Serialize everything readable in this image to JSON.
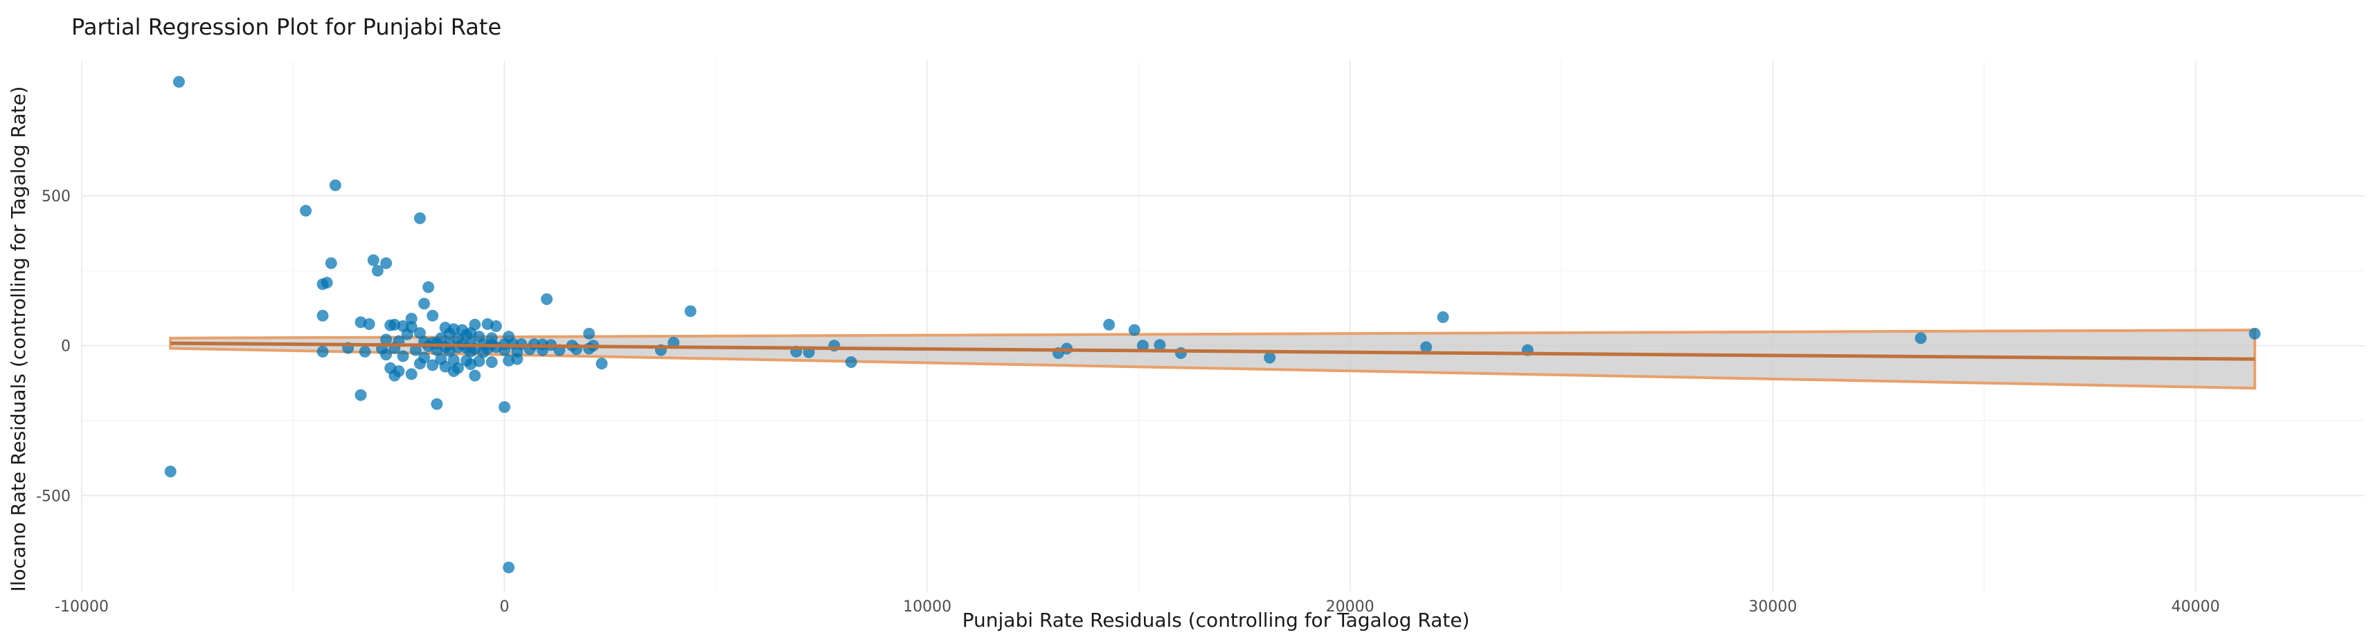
{
  "chart_data": {
    "type": "scatter",
    "title": "Partial Regression Plot for Punjabi Rate",
    "xlabel": "Punjabi Rate Residuals (controlling for Tagalog Rate)",
    "ylabel": "Ilocano Rate Residuals (controlling for Tagalog Rate)",
    "xlim": [
      -10000,
      44000
    ],
    "ylim": [
      -820,
      950
    ],
    "x_ticks": [
      -10000,
      0,
      10000,
      20000,
      30000,
      40000
    ],
    "x_tick_labels": [
      "-10000",
      "0",
      "10000",
      "20000",
      "30000",
      "40000"
    ],
    "y_ticks": [
      -500,
      0,
      500
    ],
    "y_tick_labels": [
      "-500",
      "0",
      "500"
    ],
    "grid": true,
    "point_color": "#0072B2",
    "line_color": "#C0713A",
    "band_edge_color": "#E8A06A",
    "band_fill_color": "#C8C8C8",
    "fit": {
      "x_range": [
        -7900,
        41400
      ],
      "y_start": 8,
      "y_end": -45,
      "ci_lower": [
        -9,
        -142
      ],
      "ci_upper": [
        25,
        52
      ]
    },
    "points": [
      [
        -7700,
        880
      ],
      [
        -7900,
        -420
      ],
      [
        -4700,
        450
      ],
      [
        -4000,
        535
      ],
      [
        -2000,
        425
      ],
      [
        -3100,
        285
      ],
      [
        -2800,
        275
      ],
      [
        -4100,
        275
      ],
      [
        -3000,
        250
      ],
      [
        -4200,
        210
      ],
      [
        -4300,
        205
      ],
      [
        -1800,
        195
      ],
      [
        1000,
        155
      ],
      [
        -1900,
        140
      ],
      [
        4400,
        115
      ],
      [
        -4300,
        100
      ],
      [
        -1700,
        100
      ],
      [
        -2200,
        90
      ],
      [
        -3400,
        78
      ],
      [
        -3200,
        72
      ],
      [
        -2700,
        68
      ],
      [
        -2600,
        70
      ],
      [
        -2400,
        65
      ],
      [
        -2200,
        62
      ],
      [
        -1400,
        60
      ],
      [
        -1200,
        55
      ],
      [
        -1000,
        52
      ],
      [
        -800,
        42
      ],
      [
        -700,
        70
      ],
      [
        -400,
        72
      ],
      [
        -200,
        65
      ],
      [
        -1300,
        40
      ],
      [
        -900,
        36
      ],
      [
        -2000,
        42
      ],
      [
        -2300,
        38
      ],
      [
        -600,
        30
      ],
      [
        -300,
        25
      ],
      [
        100,
        30
      ],
      [
        -1500,
        25
      ],
      [
        -1100,
        22
      ],
      [
        -2800,
        20
      ],
      [
        -2500,
        15
      ],
      [
        -1900,
        12
      ],
      [
        -1700,
        10
      ],
      [
        -1600,
        8
      ],
      [
        -1300,
        5
      ],
      [
        -1000,
        5
      ],
      [
        -800,
        6
      ],
      [
        -500,
        5
      ],
      [
        -300,
        4
      ],
      [
        0,
        5
      ],
      [
        200,
        6
      ],
      [
        400,
        5
      ],
      [
        700,
        5
      ],
      [
        900,
        4
      ],
      [
        1100,
        2
      ],
      [
        1600,
        0
      ],
      [
        2000,
        40
      ],
      [
        2100,
        0
      ],
      [
        -1800,
        -2
      ],
      [
        -1400,
        -5
      ],
      [
        -1100,
        -6
      ],
      [
        -900,
        -8
      ],
      [
        -700,
        -10
      ],
      [
        -400,
        -10
      ],
      [
        -200,
        -5
      ],
      [
        -2600,
        -8
      ],
      [
        -2900,
        -10
      ],
      [
        -3700,
        -8
      ],
      [
        -4300,
        -20
      ],
      [
        -3300,
        -20
      ],
      [
        -2100,
        -15
      ],
      [
        -1600,
        -15
      ],
      [
        -1300,
        -18
      ],
      [
        -800,
        -20
      ],
      [
        -500,
        -22
      ],
      [
        0,
        -15
      ],
      [
        300,
        -20
      ],
      [
        600,
        -12
      ],
      [
        900,
        -15
      ],
      [
        1300,
        -15
      ],
      [
        1700,
        -12
      ],
      [
        2000,
        -10
      ],
      [
        2300,
        -60
      ],
      [
        -2800,
        -30
      ],
      [
        -2400,
        -35
      ],
      [
        -1900,
        -40
      ],
      [
        -1500,
        -45
      ],
      [
        -1200,
        -48
      ],
      [
        -900,
        -50
      ],
      [
        -600,
        -52
      ],
      [
        -300,
        -55
      ],
      [
        100,
        -50
      ],
      [
        300,
        -45
      ],
      [
        -2000,
        -60
      ],
      [
        -1700,
        -65
      ],
      [
        -1400,
        -70
      ],
      [
        -1100,
        -75
      ],
      [
        -800,
        -62
      ],
      [
        -2700,
        -75
      ],
      [
        -2500,
        -85
      ],
      [
        -2600,
        -100
      ],
      [
        -2200,
        -95
      ],
      [
        -1200,
        -85
      ],
      [
        -700,
        -100
      ],
      [
        -3400,
        -165
      ],
      [
        -1600,
        -195
      ],
      [
        0,
        -205
      ],
      [
        100,
        -740
      ],
      [
        3700,
        -15
      ],
      [
        4000,
        10
      ],
      [
        6900,
        -20
      ],
      [
        7200,
        -22
      ],
      [
        7800,
        0
      ],
      [
        8200,
        -55
      ],
      [
        13100,
        -25
      ],
      [
        13300,
        -10
      ],
      [
        14300,
        70
      ],
      [
        14900,
        52
      ],
      [
        15100,
        0
      ],
      [
        15500,
        2
      ],
      [
        16000,
        -25
      ],
      [
        18100,
        -40
      ],
      [
        21800,
        -5
      ],
      [
        22200,
        95
      ],
      [
        24200,
        -15
      ],
      [
        33500,
        25
      ],
      [
        41400,
        40
      ]
    ]
  }
}
